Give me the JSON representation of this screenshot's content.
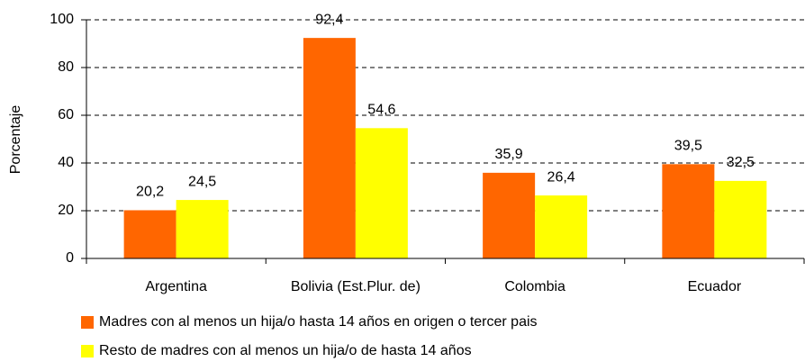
{
  "chart_data": {
    "type": "bar",
    "y_label": "Porcentaje",
    "categories": [
      "Argentina",
      "Bolivia (Est.Plur. de)",
      "Colombia",
      "Ecuador"
    ],
    "series": [
      {
        "name": "Madres con al menos un hija/o hasta 14 años en origen o tercer pais",
        "color": "#ff6600",
        "values": [
          20.2,
          92.4,
          35.9,
          39.5
        ],
        "value_labels": [
          "20,2",
          "92,4",
          "35,9",
          "39,5"
        ]
      },
      {
        "name": "Resto de madres con al menos un hija/o de hasta 14 años",
        "color": "#ffff00",
        "values": [
          24.5,
          54.6,
          26.4,
          32.5
        ],
        "value_labels": [
          "24,5",
          "54,6",
          "26,4",
          "32,5"
        ]
      }
    ],
    "ylim": [
      0,
      100
    ],
    "yticks": [
      0,
      20,
      40,
      60,
      80,
      100
    ],
    "grid": true,
    "legend": "bottom"
  }
}
